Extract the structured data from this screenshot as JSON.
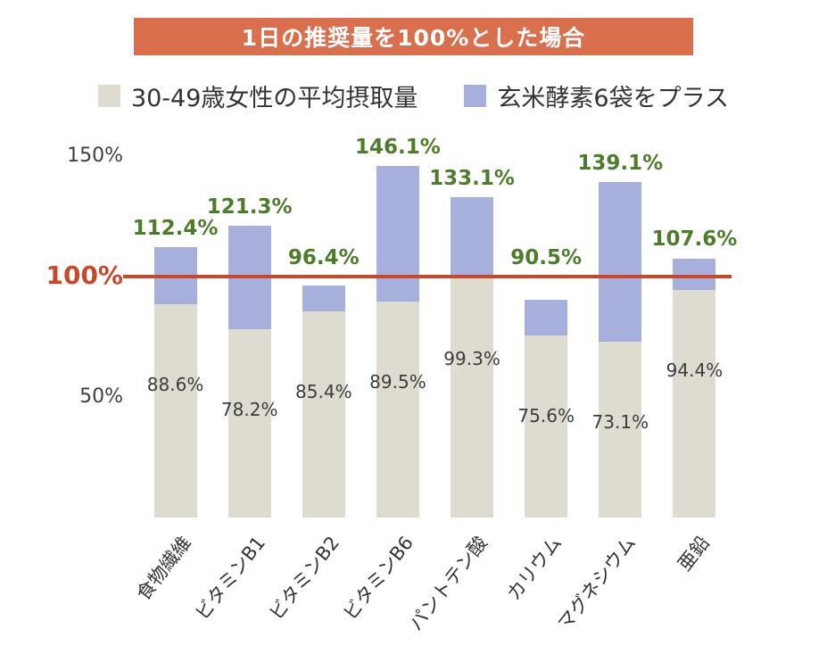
{
  "banner": {
    "label": "1日の推奨量を100%とした場合",
    "bg_color": "#d96f4c",
    "text_color": "#ffffff"
  },
  "legend": {
    "items": [
      {
        "label": "30-49歳女性の平均摂取量",
        "color": "#dedcd0"
      },
      {
        "label": "玄米酵素6袋をプラス",
        "color": "#a7b0dd"
      }
    ]
  },
  "chart_data": {
    "type": "bar",
    "stacked": true,
    "title": "1日の推奨量を100%とした場合",
    "legend_position": "top",
    "grid": false,
    "ylim": [
      0,
      150
    ],
    "y_ticks": [
      {
        "label": "150%",
        "value": 150
      },
      {
        "label": "100%",
        "value": 100
      },
      {
        "label": "50%",
        "value": 50
      }
    ],
    "reference_line": {
      "value": 100,
      "label": "100%",
      "color": "#c7492a"
    },
    "categories": [
      "食物繊維",
      "ビタミンB1",
      "ビタミンB2",
      "ビタミンB6",
      "パントテン酸",
      "カリウム",
      "マグネシウム",
      "亜鉛"
    ],
    "series": [
      {
        "name": "30-49歳女性の平均摂取量",
        "color": "#dedcd0",
        "values": [
          88.6,
          78.2,
          85.4,
          89.5,
          99.3,
          75.6,
          73.1,
          94.4
        ]
      },
      {
        "name": "玄米酵素6袋をプラス",
        "color": "#a7b0dd",
        "values_added": [
          23.8,
          43.1,
          11.0,
          56.6,
          33.8,
          14.9,
          66.0,
          13.2
        ]
      }
    ],
    "totals": [
      112.4,
      121.3,
      96.4,
      146.1,
      133.1,
      90.5,
      139.1,
      107.6
    ],
    "base_labels": [
      "88.6%",
      "78.2%",
      "85.4%",
      "89.5%",
      "99.3%",
      "75.6%",
      "73.1%",
      "94.4%"
    ],
    "total_labels": [
      "112.4%",
      "121.3%",
      "96.4%",
      "146.1%",
      "133.1%",
      "90.5%",
      "139.1%",
      "107.6%"
    ]
  }
}
